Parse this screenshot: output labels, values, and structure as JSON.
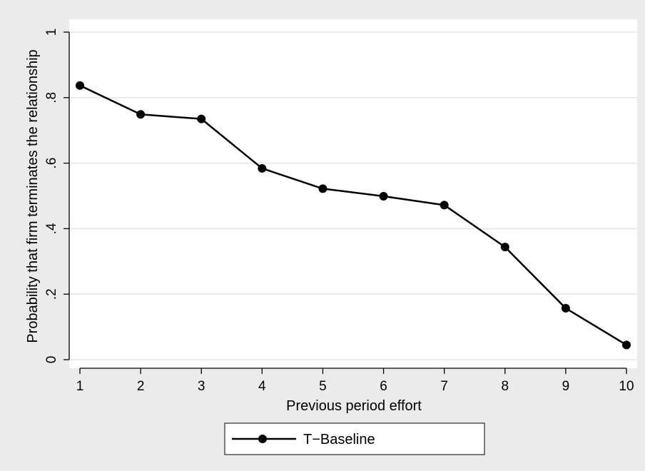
{
  "chart_data": {
    "type": "line",
    "title": "",
    "xlabel": "Previous period effort",
    "ylabel": "Probability that firm terminates the relationship",
    "x": [
      1,
      2,
      3,
      4,
      5,
      6,
      7,
      8,
      9,
      10
    ],
    "xticks": [
      "1",
      "2",
      "3",
      "4",
      "5",
      "6",
      "7",
      "8",
      "9",
      "10"
    ],
    "yticks": [
      {
        "value": 0,
        "label": "0"
      },
      {
        "value": 0.2,
        "label": ".2"
      },
      {
        "value": 0.4,
        "label": ".4"
      },
      {
        "value": 0.6,
        "label": ".6"
      },
      {
        "value": 0.8,
        "label": ".8"
      },
      {
        "value": 1,
        "label": "1"
      }
    ],
    "xlim": [
      1,
      10
    ],
    "ylim": [
      0,
      1
    ],
    "grid": true,
    "legend_position": "bottom",
    "series": [
      {
        "name": "T−Baseline",
        "color": "#000000",
        "marker": "circle",
        "values": [
          0.837,
          0.749,
          0.735,
          0.584,
          0.522,
          0.499,
          0.472,
          0.344,
          0.157,
          0.045
        ]
      }
    ]
  },
  "colors": {
    "page_background": "#ebebeb",
    "plot_background": "#ffffff",
    "gridline": "#e6e6e6",
    "axis": "#000000",
    "line": "#000000"
  }
}
